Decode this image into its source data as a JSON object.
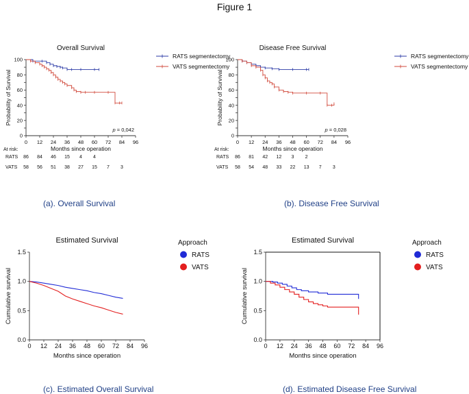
{
  "figure_title": "Figure 1",
  "colors": {
    "rats_top": "#2b3aa6",
    "vats_top": "#d14a3c",
    "rats_bottom": "#1f2ad6",
    "vats_bottom": "#e31e1e",
    "caption": "#1f3f86"
  },
  "captions": {
    "a": "(a). Overall Survival",
    "b": "(b). Disease Free Survival",
    "c": "(c). Estimated Overall Survival",
    "d": "(d). Estimated Disease Free Survival"
  },
  "chart_data": [
    {
      "id": "a",
      "type": "line",
      "step": true,
      "title": "Overall Survival",
      "xlabel": "Months since operation",
      "ylabel": "Probability of Survival",
      "xlim": [
        0,
        96
      ],
      "ylim": [
        0,
        100
      ],
      "xticks": [
        "0",
        "12",
        "24",
        "36",
        "48",
        "60",
        "72",
        "84",
        "96"
      ],
      "yticks": [
        "0",
        "10",
        "20",
        "30",
        "40",
        "50",
        "60",
        "70",
        "80",
        "90",
        "100"
      ],
      "annotation": "p = 0,042",
      "annotation_italic": "p",
      "annotation_rest": " = 0,042",
      "legend": [
        "RATS segmentectomy",
        "VATS segmentectomy"
      ],
      "series": [
        {
          "name": "RATS segmentectomy",
          "x": [
            0,
            6,
            14,
            18,
            21,
            24,
            27,
            30,
            32,
            36,
            40,
            48,
            60,
            64
          ],
          "y": [
            100,
            98,
            98,
            96,
            94,
            92,
            91,
            90,
            89,
            87,
            87,
            87,
            87,
            87
          ]
        },
        {
          "name": "VATS segmentectomy",
          "x": [
            0,
            4,
            8,
            12,
            14,
            16,
            18,
            20,
            22,
            24,
            26,
            28,
            30,
            32,
            34,
            36,
            40,
            42,
            44,
            48,
            52,
            60,
            72,
            78,
            82,
            84
          ],
          "y": [
            100,
            98,
            96,
            94,
            92,
            90,
            88,
            86,
            83,
            80,
            77,
            74,
            72,
            70,
            68,
            66,
            63,
            60,
            58,
            57,
            57,
            57,
            57,
            43,
            43,
            43
          ]
        }
      ],
      "risk_table": {
        "heading": "At risk:",
        "rows": [
          {
            "label": "RATS",
            "values": [
              "86",
              "84",
              "46",
              "15",
              "4",
              "4"
            ]
          },
          {
            "label": "VATS",
            "values": [
              "58",
              "56",
              "51",
              "38",
              "27",
              "15",
              "7",
              "3"
            ]
          }
        ]
      }
    },
    {
      "id": "b",
      "type": "line",
      "step": true,
      "title": "Disease Free Survival",
      "xlabel": "Months since operation",
      "ylabel": "Probability of Survival",
      "xlim": [
        0,
        96
      ],
      "ylim": [
        0,
        100
      ],
      "xticks": [
        "0",
        "12",
        "24",
        "36",
        "48",
        "60",
        "72",
        "84",
        "96"
      ],
      "yticks": [
        "0",
        "10",
        "20",
        "30",
        "40",
        "50",
        "60",
        "70",
        "80",
        "90",
        "100"
      ],
      "annotation": "p = 0,028",
      "annotation_italic": "p",
      "annotation_rest": " = 0,028",
      "legend": [
        "RATS segmentectomy",
        "VATS segmentectomy"
      ],
      "series": [
        {
          "name": "RATS segmentectomy",
          "x": [
            0,
            4,
            8,
            12,
            16,
            20,
            24,
            30,
            36,
            48,
            60,
            62
          ],
          "y": [
            100,
            98,
            96,
            94,
            92,
            90,
            89,
            88,
            87,
            87,
            87,
            87
          ]
        },
        {
          "name": "VATS segmentectomy",
          "x": [
            0,
            4,
            8,
            12,
            16,
            20,
            22,
            24,
            26,
            28,
            30,
            32,
            36,
            40,
            44,
            48,
            60,
            72,
            78,
            82,
            84
          ],
          "y": [
            100,
            98,
            96,
            92,
            90,
            86,
            80,
            76,
            72,
            70,
            68,
            64,
            60,
            58,
            57,
            56,
            56,
            56,
            40,
            40,
            42
          ]
        }
      ],
      "risk_table": {
        "heading": "At risk:",
        "rows": [
          {
            "label": "RATS",
            "values": [
              "86",
              "81",
              "42",
              "12",
              "3",
              "2"
            ]
          },
          {
            "label": "VATS",
            "values": [
              "58",
              "54",
              "48",
              "33",
              "22",
              "13",
              "7",
              "3"
            ]
          }
        ]
      }
    },
    {
      "id": "c",
      "type": "line",
      "step": false,
      "title": "Estimated Survival",
      "xlabel": "Months since operation",
      "ylabel": "Cumulative survival",
      "xlim": [
        0,
        96
      ],
      "ylim": [
        0,
        1.5
      ],
      "xticks": [
        "0",
        "12",
        "24",
        "36",
        "48",
        "60",
        "72",
        "84",
        "96"
      ],
      "yticks": [
        "0.0",
        "0.5",
        "1.0",
        "1.5"
      ],
      "legend_title": "Approach",
      "legend": [
        "RATS",
        "VATS"
      ],
      "series": [
        {
          "name": "RATS",
          "x": [
            0,
            6,
            12,
            18,
            24,
            30,
            36,
            42,
            48,
            54,
            60,
            66,
            72,
            78
          ],
          "y": [
            1.0,
            0.99,
            0.97,
            0.95,
            0.93,
            0.9,
            0.88,
            0.86,
            0.84,
            0.81,
            0.79,
            0.76,
            0.73,
            0.71
          ]
        },
        {
          "name": "VATS",
          "x": [
            0,
            6,
            12,
            18,
            24,
            30,
            36,
            42,
            48,
            54,
            60,
            66,
            72,
            78
          ],
          "y": [
            1.0,
            0.97,
            0.93,
            0.88,
            0.83,
            0.75,
            0.7,
            0.66,
            0.62,
            0.58,
            0.55,
            0.51,
            0.47,
            0.44
          ]
        }
      ]
    },
    {
      "id": "d",
      "type": "line",
      "step": true,
      "title": "Estimated Survival",
      "xlabel": "Months since operation",
      "ylabel": "Cumulative survival",
      "xlim": [
        0,
        96
      ],
      "ylim": [
        0,
        1.5
      ],
      "xticks": [
        "0",
        "12",
        "24",
        "36",
        "48",
        "60",
        "72",
        "84",
        "96"
      ],
      "yticks": [
        "0.0",
        "0.5",
        "1.0",
        "1.5"
      ],
      "legend_title": "Approach",
      "legend": [
        "RATS",
        "VATS"
      ],
      "series": [
        {
          "name": "RATS",
          "x": [
            0,
            6,
            10,
            14,
            18,
            22,
            26,
            30,
            36,
            44,
            52,
            78,
            78
          ],
          "y": [
            1.0,
            0.99,
            0.97,
            0.95,
            0.92,
            0.89,
            0.86,
            0.84,
            0.82,
            0.8,
            0.78,
            0.78,
            0.7
          ]
        },
        {
          "name": "VATS",
          "x": [
            0,
            4,
            8,
            12,
            16,
            20,
            24,
            28,
            32,
            36,
            40,
            44,
            48,
            52,
            78,
            78
          ],
          "y": [
            1.0,
            0.97,
            0.94,
            0.9,
            0.86,
            0.82,
            0.78,
            0.73,
            0.69,
            0.65,
            0.62,
            0.6,
            0.58,
            0.56,
            0.56,
            0.43
          ]
        }
      ]
    }
  ]
}
